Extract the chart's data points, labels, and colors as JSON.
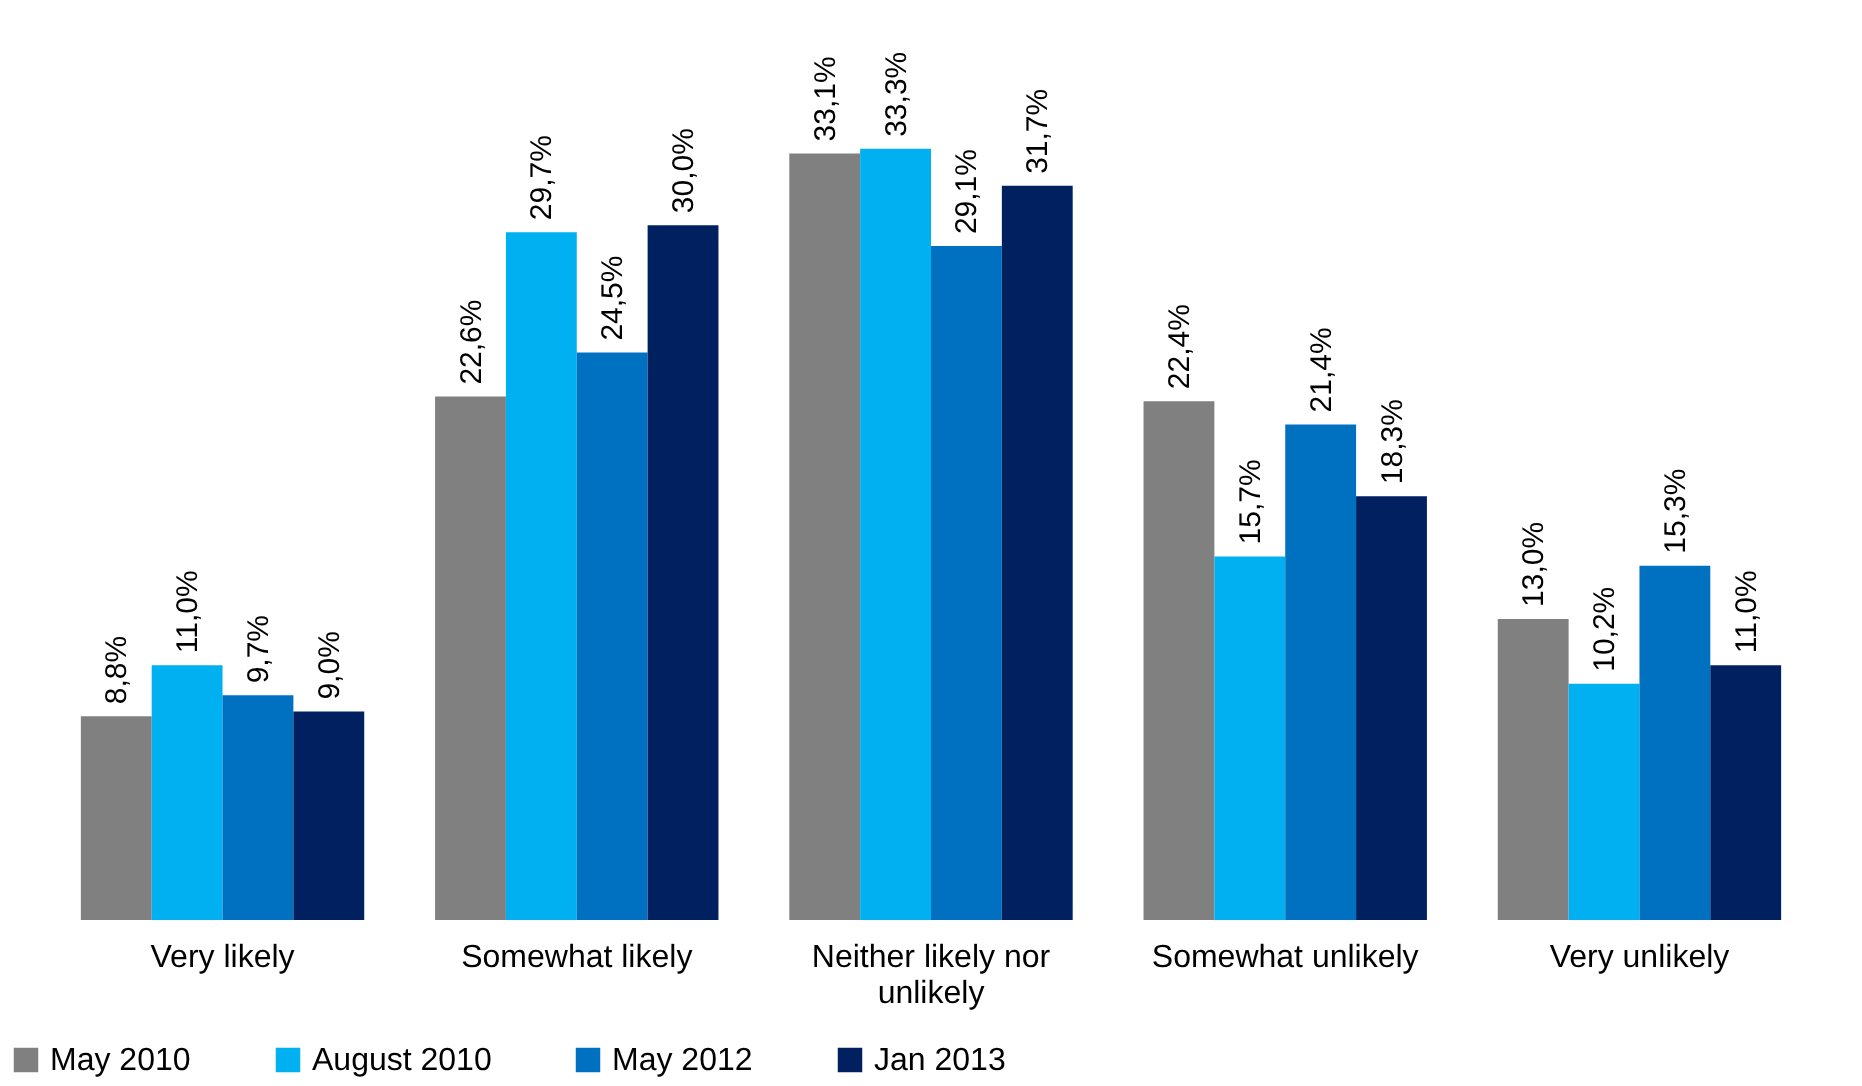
{
  "chart_data": {
    "type": "bar",
    "categories": [
      "Very likely",
      "Somewhat likely",
      "Neither likely nor unlikely",
      "Somewhat unlikely",
      "Very unlikely"
    ],
    "series": [
      {
        "name": "May 2010",
        "color": "#808080",
        "values": [
          8.8,
          22.6,
          33.1,
          22.4,
          13.0
        ],
        "value_labels": [
          "8,8%",
          "22,6%",
          "33,1%",
          "22,4%",
          "13,0%"
        ]
      },
      {
        "name": "August 2010",
        "color": "#00b0f0",
        "values": [
          11.0,
          29.7,
          33.3,
          15.7,
          10.2
        ],
        "value_labels": [
          "11,0%",
          "29,7%",
          "33,3%",
          "15,7%",
          "10,2%"
        ]
      },
      {
        "name": "May 2012",
        "color": "#0070c0",
        "values": [
          9.7,
          24.5,
          29.1,
          21.4,
          15.3
        ],
        "value_labels": [
          "9,7%",
          "24,5%",
          "29,1%",
          "21,4%",
          "15,3%"
        ]
      },
      {
        "name": "Jan 2013",
        "color": "#002060",
        "values": [
          9.0,
          30.0,
          31.7,
          18.3,
          11.0
        ],
        "value_labels": [
          "9,0%",
          "30,0%",
          "31,7%",
          "18,3%",
          "11,0%"
        ]
      }
    ],
    "legend": "bottom",
    "grid": false
  }
}
